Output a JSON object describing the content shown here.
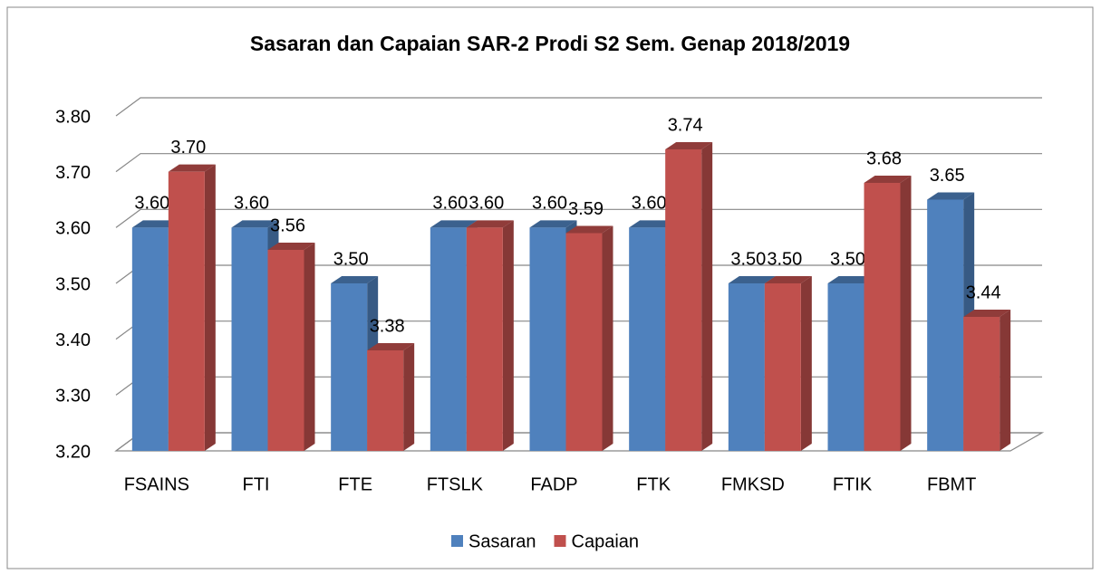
{
  "chart_data": {
    "type": "bar3d",
    "title": "Sasaran dan Capaian SAR-2 Prodi S2 Sem. Genap 2018/2019",
    "categories": [
      "FSAINS",
      "FTI",
      "FTE",
      "FTSLK",
      "FADP",
      "FTK",
      "FMKSD",
      "FTIK",
      "FBMT"
    ],
    "series": [
      {
        "name": "Sasaran",
        "color": "#4f81bd",
        "values": [
          3.6,
          3.6,
          3.5,
          3.6,
          3.6,
          3.6,
          3.5,
          3.5,
          3.65
        ],
        "value_labels": [
          "3.60",
          "3.60",
          "3.50",
          "3.60",
          "3.60",
          "3.60",
          "3.50",
          "3.50",
          "3.65"
        ]
      },
      {
        "name": "Capaian",
        "color": "#c0504d",
        "values": [
          3.7,
          3.56,
          3.38,
          3.6,
          3.59,
          3.74,
          3.5,
          3.68,
          3.44
        ],
        "value_labels": [
          "3.70",
          "3.56",
          "3.38",
          "3.60",
          "3.59",
          "3.74",
          "3.50",
          "3.68",
          "3.44"
        ]
      }
    ],
    "ylim": [
      3.2,
      3.8
    ],
    "yticks": [
      {
        "value": 3.2,
        "label": "3.20"
      },
      {
        "value": 3.3,
        "label": "3.30"
      },
      {
        "value": 3.4,
        "label": "3.40"
      },
      {
        "value": 3.5,
        "label": "3.50"
      },
      {
        "value": 3.6,
        "label": "3.60"
      },
      {
        "value": 3.7,
        "label": "3.70"
      },
      {
        "value": 3.8,
        "label": "3.80"
      }
    ],
    "grid": true,
    "legend": "bottom"
  }
}
